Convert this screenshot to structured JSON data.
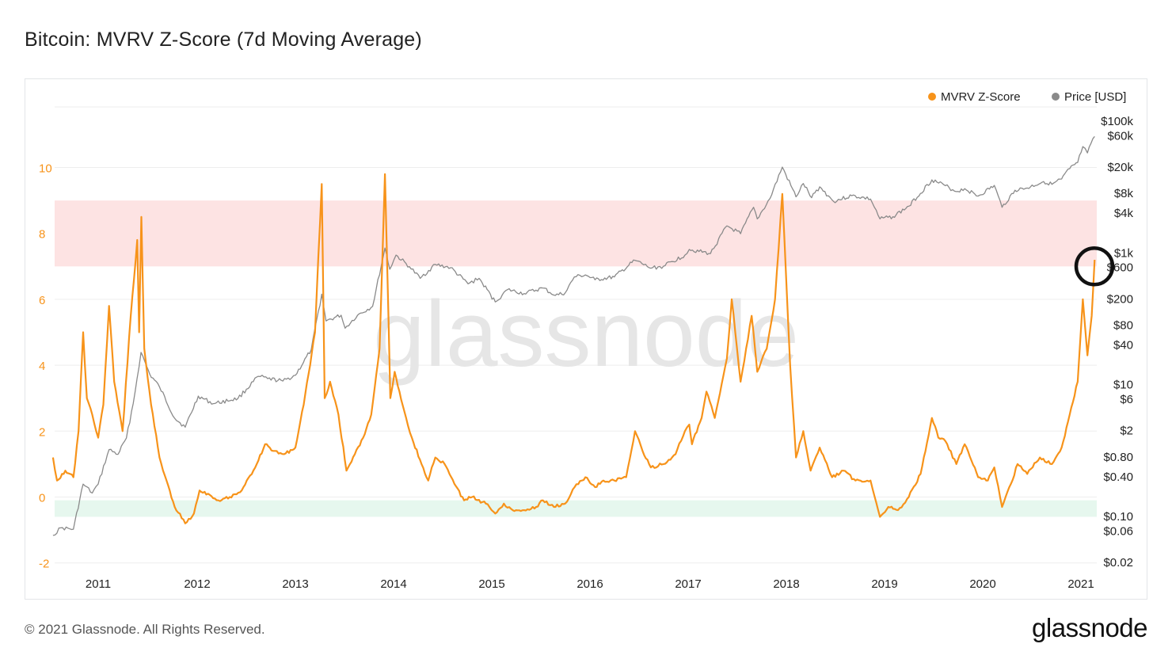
{
  "title": "Bitcoin: MVRV Z-Score (7d Moving Average)",
  "footer": {
    "copyright": "© 2021 Glassnode. All Rights Reserved.",
    "logo": "glassnode"
  },
  "watermark": "glassnode",
  "colors": {
    "zscore": "#f7931a",
    "price": "#8a8a8a",
    "red_band": "#fde3e3",
    "green_band": "#e6f7ee",
    "marker": "#111111"
  },
  "chart_data": {
    "type": "line",
    "title": "Bitcoin: MVRV Z-Score (7d Moving Average)",
    "legend": {
      "placement": "top-right",
      "entries": [
        "MVRV Z-Score",
        "Price [USD]"
      ]
    },
    "x_ticks": [
      "2011",
      "2012",
      "2013",
      "2014",
      "2015",
      "2016",
      "2017",
      "2018",
      "2019",
      "2020",
      "2021"
    ],
    "xlim": [
      "2010-07-17",
      "2021-02-28"
    ],
    "y_left": {
      "ticks": [
        "-2",
        "0",
        "2",
        "4",
        "6",
        "8",
        "10"
      ],
      "range": [
        -2,
        12
      ]
    },
    "y_right": {
      "scale": "log",
      "ticks": [
        "$100k",
        "$60k",
        "$20k",
        "$8k",
        "$4k",
        "$1k",
        "$600",
        "$200",
        "$80",
        "$40",
        "$10",
        "$6",
        "$2",
        "$0.80",
        "$0.40",
        "$0.10",
        "$0.06",
        "$0.02"
      ]
    },
    "bands": [
      {
        "name": "top",
        "from": 7,
        "to": 9,
        "color": "#fde3e3"
      },
      {
        "name": "bottom",
        "from": -0.6,
        "to": -0.1,
        "color": "#e6f7ee"
      }
    ],
    "annotation": {
      "type": "circle",
      "date": "2021-02-20",
      "value": 7
    },
    "series": [
      {
        "name": "MVRV Z-Score",
        "axis": "left",
        "points": [
          [
            "2010-07-17",
            1.2
          ],
          [
            "2010-08-01",
            0.5
          ],
          [
            "2010-09-01",
            0.8
          ],
          [
            "2010-10-01",
            0.6
          ],
          [
            "2010-10-20",
            2.0
          ],
          [
            "2010-11-06",
            5.0
          ],
          [
            "2010-11-20",
            3.0
          ],
          [
            "2010-12-10",
            2.5
          ],
          [
            "2011-01-01",
            1.8
          ],
          [
            "2011-01-20",
            2.8
          ],
          [
            "2011-02-10",
            5.8
          ],
          [
            "2011-03-01",
            3.5
          ],
          [
            "2011-04-01",
            2.0
          ],
          [
            "2011-05-01",
            5.5
          ],
          [
            "2011-05-25",
            7.8
          ],
          [
            "2011-06-01",
            5.0
          ],
          [
            "2011-06-09",
            8.5
          ],
          [
            "2011-06-20",
            4.5
          ],
          [
            "2011-07-15",
            2.8
          ],
          [
            "2011-08-15",
            1.2
          ],
          [
            "2011-09-10",
            0.5
          ],
          [
            "2011-10-10",
            -0.3
          ],
          [
            "2011-11-18",
            -0.8
          ],
          [
            "2011-12-20",
            -0.5
          ],
          [
            "2012-01-10",
            0.2
          ],
          [
            "2012-02-10",
            0.1
          ],
          [
            "2012-03-20",
            -0.1
          ],
          [
            "2012-05-01",
            0.0
          ],
          [
            "2012-06-15",
            0.2
          ],
          [
            "2012-08-10",
            1.0
          ],
          [
            "2012-09-10",
            1.6
          ],
          [
            "2012-10-10",
            1.4
          ],
          [
            "2012-11-20",
            1.3
          ],
          [
            "2013-01-01",
            1.5
          ],
          [
            "2013-02-01",
            2.8
          ],
          [
            "2013-03-15",
            5.0
          ],
          [
            "2013-04-09",
            9.5
          ],
          [
            "2013-04-20",
            3.0
          ],
          [
            "2013-05-10",
            3.5
          ],
          [
            "2013-06-10",
            2.5
          ],
          [
            "2013-07-10",
            0.8
          ],
          [
            "2013-08-10",
            1.3
          ],
          [
            "2013-09-10",
            1.8
          ],
          [
            "2013-10-10",
            2.5
          ],
          [
            "2013-11-10",
            4.5
          ],
          [
            "2013-11-30",
            9.8
          ],
          [
            "2013-12-20",
            3.0
          ],
          [
            "2014-01-05",
            3.8
          ],
          [
            "2014-02-10",
            2.6
          ],
          [
            "2014-03-10",
            1.8
          ],
          [
            "2014-04-15",
            1.0
          ],
          [
            "2014-05-10",
            0.5
          ],
          [
            "2014-06-05",
            1.2
          ],
          [
            "2014-07-10",
            1.0
          ],
          [
            "2014-08-15",
            0.4
          ],
          [
            "2014-09-20",
            -0.1
          ],
          [
            "2014-10-20",
            0.0
          ],
          [
            "2014-12-10",
            -0.2
          ],
          [
            "2015-01-14",
            -0.5
          ],
          [
            "2015-02-15",
            -0.2
          ],
          [
            "2015-03-20",
            -0.4
          ],
          [
            "2015-05-01",
            -0.4
          ],
          [
            "2015-06-15",
            -0.3
          ],
          [
            "2015-07-10",
            -0.1
          ],
          [
            "2015-08-20",
            -0.3
          ],
          [
            "2015-10-01",
            -0.2
          ],
          [
            "2015-11-05",
            0.3
          ],
          [
            "2015-12-15",
            0.6
          ],
          [
            "2016-01-20",
            0.3
          ],
          [
            "2016-02-20",
            0.5
          ],
          [
            "2016-04-01",
            0.5
          ],
          [
            "2016-05-15",
            0.6
          ],
          [
            "2016-06-17",
            2.0
          ],
          [
            "2016-07-15",
            1.4
          ],
          [
            "2016-08-15",
            0.9
          ],
          [
            "2016-10-01",
            1.0
          ],
          [
            "2016-11-15",
            1.3
          ],
          [
            "2016-12-20",
            2.0
          ],
          [
            "2017-01-05",
            2.2
          ],
          [
            "2017-01-15",
            1.6
          ],
          [
            "2017-02-20",
            2.4
          ],
          [
            "2017-03-10",
            3.2
          ],
          [
            "2017-04-10",
            2.4
          ],
          [
            "2017-05-25",
            4.2
          ],
          [
            "2017-06-12",
            6.0
          ],
          [
            "2017-07-15",
            3.5
          ],
          [
            "2017-08-25",
            5.5
          ],
          [
            "2017-09-15",
            3.8
          ],
          [
            "2017-10-20",
            4.5
          ],
          [
            "2017-11-20",
            6.0
          ],
          [
            "2017-12-17",
            9.2
          ],
          [
            "2018-01-15",
            4.0
          ],
          [
            "2018-02-06",
            1.2
          ],
          [
            "2018-03-05",
            2.0
          ],
          [
            "2018-04-01",
            0.8
          ],
          [
            "2018-05-05",
            1.5
          ],
          [
            "2018-06-20",
            0.6
          ],
          [
            "2018-08-01",
            0.8
          ],
          [
            "2018-09-15",
            0.5
          ],
          [
            "2018-11-10",
            0.5
          ],
          [
            "2018-12-15",
            -0.6
          ],
          [
            "2019-01-15",
            -0.3
          ],
          [
            "2019-02-20",
            -0.4
          ],
          [
            "2019-04-01",
            0.0
          ],
          [
            "2019-05-15",
            0.7
          ],
          [
            "2019-06-26",
            2.4
          ],
          [
            "2019-07-20",
            1.8
          ],
          [
            "2019-08-15",
            1.7
          ],
          [
            "2019-09-25",
            1.0
          ],
          [
            "2019-10-26",
            1.6
          ],
          [
            "2019-12-15",
            0.6
          ],
          [
            "2020-01-20",
            0.5
          ],
          [
            "2020-02-13",
            0.9
          ],
          [
            "2020-03-13",
            -0.3
          ],
          [
            "2020-04-15",
            0.4
          ],
          [
            "2020-05-10",
            1.0
          ],
          [
            "2020-06-15",
            0.7
          ],
          [
            "2020-08-01",
            1.2
          ],
          [
            "2020-09-15",
            1.0
          ],
          [
            "2020-10-21",
            1.5
          ],
          [
            "2020-11-20",
            2.5
          ],
          [
            "2020-12-20",
            3.5
          ],
          [
            "2021-01-08",
            6.0
          ],
          [
            "2021-01-25",
            4.3
          ],
          [
            "2021-02-10",
            5.5
          ],
          [
            "2021-02-21",
            7.2
          ]
        ]
      },
      {
        "name": "Price [USD]",
        "axis": "right",
        "points": [
          [
            "2010-07-17",
            0.05
          ],
          [
            "2010-08-15",
            0.065
          ],
          [
            "2010-10-01",
            0.062
          ],
          [
            "2010-11-06",
            0.3
          ],
          [
            "2010-12-10",
            0.22
          ],
          [
            "2011-01-01",
            0.3
          ],
          [
            "2011-02-10",
            1.0
          ],
          [
            "2011-03-15",
            0.85
          ],
          [
            "2011-04-15",
            1.5
          ],
          [
            "2011-05-10",
            5.0
          ],
          [
            "2011-06-08",
            30
          ],
          [
            "2011-07-10",
            14
          ],
          [
            "2011-08-15",
            9
          ],
          [
            "2011-10-10",
            3
          ],
          [
            "2011-11-18",
            2.2
          ],
          [
            "2012-01-05",
            6.5
          ],
          [
            "2012-03-01",
            5
          ],
          [
            "2012-06-01",
            6
          ],
          [
            "2012-08-16",
            13
          ],
          [
            "2012-09-20",
            12
          ],
          [
            "2012-11-15",
            11
          ],
          [
            "2013-01-01",
            13.5
          ],
          [
            "2013-03-01",
            33
          ],
          [
            "2013-04-09",
            230
          ],
          [
            "2013-04-25",
            90
          ],
          [
            "2013-06-20",
            110
          ],
          [
            "2013-07-05",
            70
          ],
          [
            "2013-08-20",
            110
          ],
          [
            "2013-10-15",
            150
          ],
          [
            "2013-11-30",
            1150
          ],
          [
            "2013-12-18",
            550
          ],
          [
            "2014-01-10",
            900
          ],
          [
            "2014-03-01",
            600
          ],
          [
            "2014-04-10",
            400
          ],
          [
            "2014-06-05",
            650
          ],
          [
            "2014-08-01",
            580
          ],
          [
            "2014-10-05",
            330
          ],
          [
            "2014-11-15",
            400
          ],
          [
            "2015-01-14",
            175
          ],
          [
            "2015-03-01",
            270
          ],
          [
            "2015-05-01",
            235
          ],
          [
            "2015-07-10",
            285
          ],
          [
            "2015-08-25",
            220
          ],
          [
            "2015-10-01",
            240
          ],
          [
            "2015-11-04",
            420
          ],
          [
            "2015-12-15",
            450
          ],
          [
            "2016-01-20",
            380
          ],
          [
            "2016-04-01",
            420
          ],
          [
            "2016-06-17",
            750
          ],
          [
            "2016-08-15",
            570
          ],
          [
            "2016-10-01",
            610
          ],
          [
            "2016-12-20",
            900
          ],
          [
            "2017-01-05",
            1100
          ],
          [
            "2017-03-25",
            950
          ],
          [
            "2017-05-25",
            2500
          ],
          [
            "2017-07-15",
            1900
          ],
          [
            "2017-09-01",
            4800
          ],
          [
            "2017-09-15",
            3200
          ],
          [
            "2017-11-01",
            6500
          ],
          [
            "2017-12-17",
            19500
          ],
          [
            "2018-02-06",
            6900
          ],
          [
            "2018-03-05",
            11000
          ],
          [
            "2018-04-05",
            6700
          ],
          [
            "2018-05-05",
            9800
          ],
          [
            "2018-06-25",
            5900
          ],
          [
            "2018-09-01",
            7200
          ],
          [
            "2018-11-10",
            6400
          ],
          [
            "2018-12-15",
            3200
          ],
          [
            "2019-02-01",
            3450
          ],
          [
            "2019-04-02",
            5000
          ],
          [
            "2019-06-26",
            12500
          ],
          [
            "2019-08-15",
            10200
          ],
          [
            "2019-09-25",
            8300
          ],
          [
            "2019-10-26",
            9200
          ],
          [
            "2019-12-15",
            7100
          ],
          [
            "2020-02-13",
            10300
          ],
          [
            "2020-03-13",
            4800
          ],
          [
            "2020-04-30",
            8700
          ],
          [
            "2020-06-15",
            9400
          ],
          [
            "2020-08-15",
            11800
          ],
          [
            "2020-09-15",
            10700
          ],
          [
            "2020-10-21",
            12900
          ],
          [
            "2020-11-20",
            18500
          ],
          [
            "2020-12-20",
            23000
          ],
          [
            "2021-01-08",
            40000
          ],
          [
            "2021-01-25",
            32000
          ],
          [
            "2021-02-21",
            57000
          ]
        ]
      }
    ]
  }
}
